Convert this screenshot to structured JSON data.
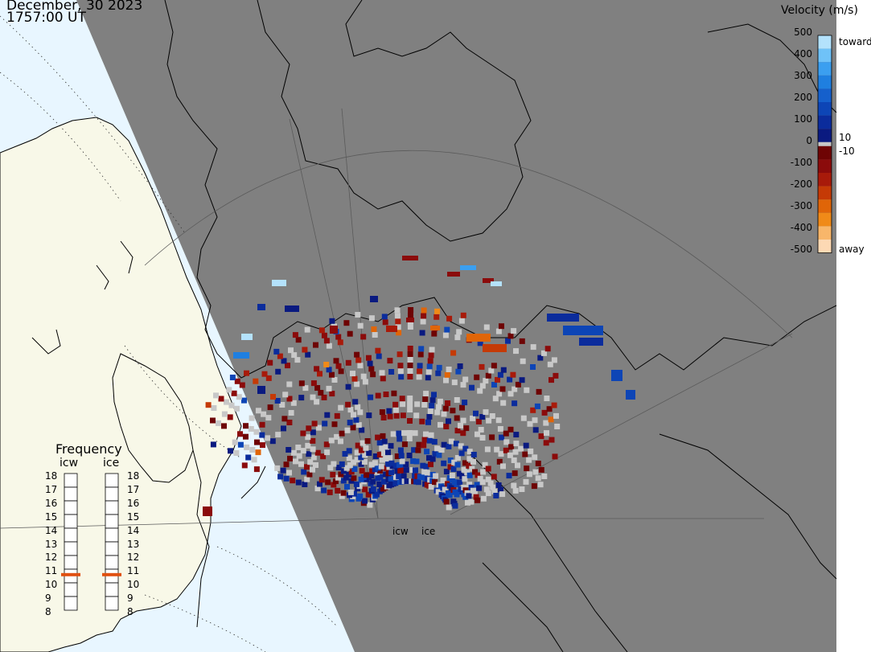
{
  "header": {
    "date": "December, 30 2023",
    "time": "1757:00 UT"
  },
  "colorbar": {
    "title": "Velocity (m/s)",
    "ticks": [
      "500",
      "400",
      "300",
      "200",
      "100",
      "0",
      "-100",
      "-200",
      "-300",
      "-400",
      "-500"
    ],
    "inner_pos": "10",
    "inner_neg": "-10",
    "toward_label": "toward",
    "away_label": "away",
    "toward_colors": [
      "#0a1a80",
      "#0b2c9c",
      "#0d45b6",
      "#1560cc",
      "#1f7fe0",
      "#3b9ff0",
      "#6fc2f8",
      "#b4e2fc"
    ],
    "away_colors": [
      "#6e0404",
      "#8b0b0b",
      "#a81a0a",
      "#c53a06",
      "#e06508",
      "#f08a18",
      "#f8b66a",
      "#fdd9b4"
    ],
    "zero_band_color": "#c8c8c8"
  },
  "frequency": {
    "title": "Frequency",
    "radars": [
      {
        "name": "icw",
        "value_mhz": 10.6
      },
      {
        "name": "ice",
        "value_mhz": 10.6
      }
    ],
    "min": 8,
    "max": 18,
    "ticks": [
      "18",
      "17",
      "16",
      "15",
      "14",
      "13",
      "12",
      "11",
      "10",
      "9",
      "8"
    ],
    "marker_color": "#e05010"
  },
  "map": {
    "night_color": "#808080",
    "ocean_day_color": "#e8f6ff",
    "land_day_color": "#f8f8e8",
    "coast_color": "#000000",
    "ground_scatter_color": "#c8c8c8",
    "radar_sites": [
      "icw",
      "ice"
    ]
  }
}
